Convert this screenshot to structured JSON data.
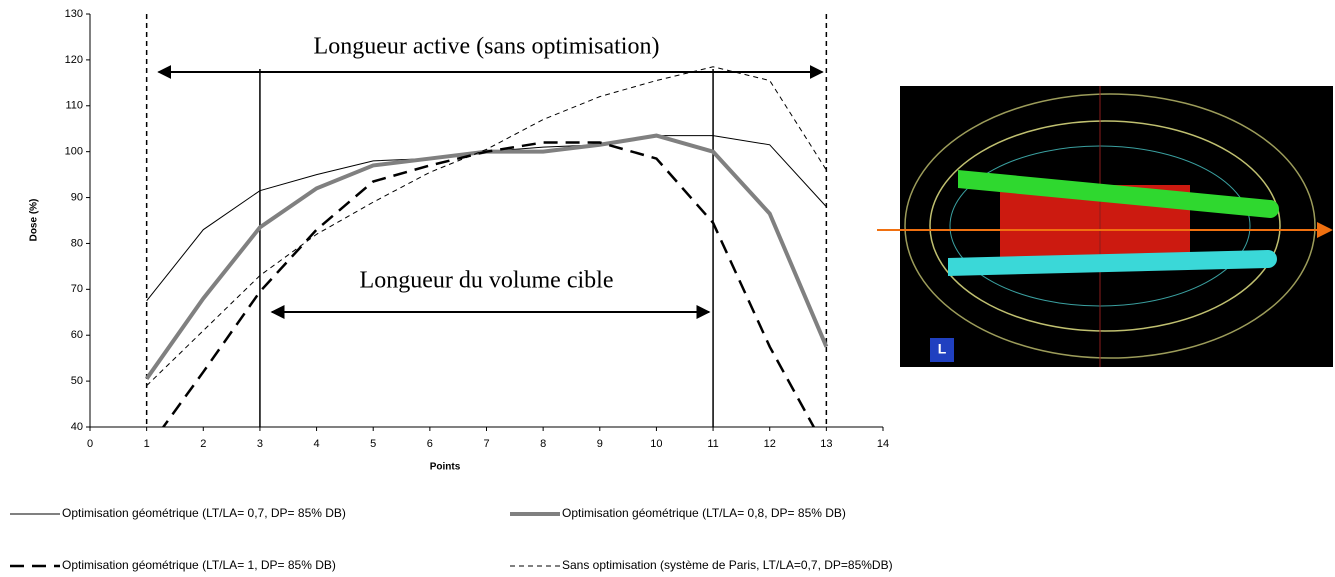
{
  "chart_data": {
    "type": "line",
    "x_label": "Points",
    "y_label": "Dose (%)",
    "x": [
      1,
      2,
      3,
      4,
      5,
      6,
      7,
      8,
      9,
      10,
      11,
      12,
      13
    ],
    "series": [
      {
        "name": "Optimisation géométrique (LT/LA= 0,7, DP= 85% DB)",
        "color": "#000000",
        "width": 1,
        "dash": "solid",
        "values": [
          67.5,
          83,
          91.5,
          95,
          98,
          98.5,
          100,
          101,
          101.5,
          103.5,
          103.5,
          101.5,
          88
        ]
      },
      {
        "name": "Optimisation géométrique (LT/LA= 0,8, DP= 85% DB)",
        "color": "#808080",
        "width": 4,
        "dash": "solid",
        "values": [
          50.5,
          68,
          83.5,
          92,
          97,
          98.5,
          100,
          100,
          101.5,
          103.5,
          100,
          86.5,
          57.5
        ]
      },
      {
        "name": "Optimisation géométrique (LT/LA= 1, DP= 85% DB)",
        "color": "#000000",
        "width": 2.5,
        "dash": "dashed",
        "values": [
          35,
          52,
          69.5,
          83,
          93.5,
          97,
          100,
          102,
          102,
          98.5,
          84.5,
          57.5,
          35
        ]
      },
      {
        "name": "Sans optimisation (système de Paris, LT/LA=0,7, DP=85%DB)",
        "color": "#000000",
        "width": 1,
        "dash": "dashed",
        "values": [
          49,
          61,
          73,
          82,
          89,
          95.5,
          100.5,
          107,
          112,
          115.5,
          118.5,
          115.5,
          96
        ]
      }
    ],
    "annotations": [
      {
        "text": "Longueur active (sans optimisation)",
        "x": [
          1,
          13
        ]
      },
      {
        "text": "Longueur du volume cible",
        "x": [
          3,
          11
        ]
      }
    ],
    "xlim": [
      0,
      14
    ],
    "xticks": [
      0,
      1,
      2,
      3,
      4,
      5,
      6,
      7,
      8,
      9,
      10,
      11,
      12,
      13,
      14
    ],
    "ylim": [
      40,
      130
    ],
    "yticks": [
      40,
      50,
      60,
      70,
      80,
      90,
      100,
      110,
      120,
      130
    ],
    "grid": false
  }
}
